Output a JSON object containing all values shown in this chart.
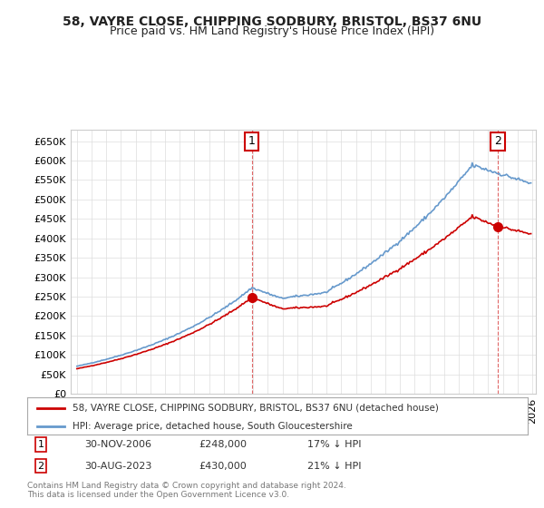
{
  "title": "58, VAYRE CLOSE, CHIPPING SODBURY, BRISTOL, BS37 6NU",
  "subtitle": "Price paid vs. HM Land Registry's House Price Index (HPI)",
  "yticks": [
    0,
    50000,
    100000,
    150000,
    200000,
    250000,
    300000,
    350000,
    400000,
    450000,
    500000,
    550000,
    600000,
    650000
  ],
  "ytick_labels": [
    "£0",
    "£50K",
    "£100K",
    "£150K",
    "£200K",
    "£250K",
    "£300K",
    "£350K",
    "£400K",
    "£450K",
    "£500K",
    "£550K",
    "£600K",
    "£650K"
  ],
  "ylim": [
    0,
    680000
  ],
  "sale1_date": "2006-11-30",
  "sale1_price": 248000,
  "sale2_date": "2023-08-30",
  "sale2_price": 430000,
  "sale_color": "#cc0000",
  "hpi_color": "#6699cc",
  "legend_sale": "58, VAYRE CLOSE, CHIPPING SODBURY, BRISTOL, BS37 6NU (detached house)",
  "legend_hpi": "HPI: Average price, detached house, South Gloucestershire",
  "footer": "Contains HM Land Registry data © Crown copyright and database right 2024.\nThis data is licensed under the Open Government Licence v3.0.",
  "background_color": "#ffffff",
  "grid_color": "#dddddd",
  "title_fontsize": 10,
  "subtitle_fontsize": 9,
  "tick_fontsize": 8
}
